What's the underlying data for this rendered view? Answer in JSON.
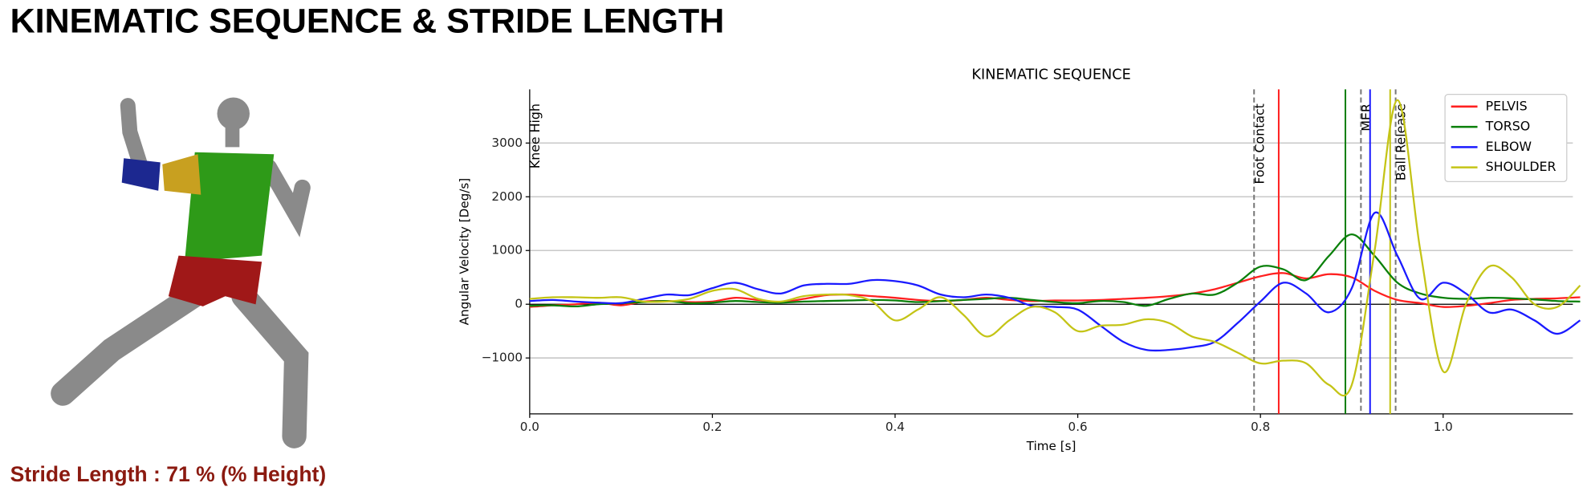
{
  "header": {
    "title": "KINEMATIC SEQUENCE & STRIDE LENGTH"
  },
  "figure": {
    "stride_label": "Stride Length : 71 % (% Height)"
  },
  "chart_data": {
    "type": "line",
    "title": "KINEMATIC SEQUENCE",
    "x_label": "Time [s]",
    "y_label": "Angular Velocity [Deg/s]",
    "x": [
      0,
      0.025,
      0.05,
      0.075,
      0.1,
      0.125,
      0.15,
      0.175,
      0.2,
      0.225,
      0.25,
      0.275,
      0.3,
      0.325,
      0.35,
      0.375,
      0.4,
      0.425,
      0.45,
      0.475,
      0.5,
      0.525,
      0.55,
      0.575,
      0.6,
      0.625,
      0.65,
      0.675,
      0.7,
      0.725,
      0.75,
      0.775,
      0.8,
      0.825,
      0.85,
      0.875,
      0.9,
      0.925,
      0.95,
      0.975,
      1.0,
      1.025,
      1.05,
      1.075,
      1.1,
      1.125,
      1.15
    ],
    "series": [
      {
        "name": "PELVIS",
        "color": "#ff2020",
        "peak_time": 0.82,
        "values": [
          -50,
          -20,
          0,
          30,
          -20,
          50,
          60,
          40,
          50,
          120,
          80,
          40,
          100,
          170,
          180,
          150,
          120,
          80,
          60,
          80,
          120,
          80,
          60,
          70,
          70,
          80,
          100,
          120,
          150,
          200,
          280,
          400,
          520,
          580,
          480,
          560,
          500,
          250,
          80,
          20,
          -50,
          -30,
          20,
          80,
          100,
          110,
          130
        ]
      },
      {
        "name": "TORSO",
        "color": "#0a800a",
        "peak_time": 0.893,
        "values": [
          -30,
          -20,
          -40,
          0,
          20,
          40,
          60,
          20,
          30,
          60,
          40,
          30,
          50,
          60,
          70,
          80,
          70,
          40,
          60,
          80,
          100,
          120,
          80,
          40,
          20,
          60,
          40,
          -30,
          100,
          200,
          180,
          400,
          700,
          650,
          450,
          900,
          1300,
          900,
          400,
          200,
          120,
          100,
          120,
          110,
          90,
          60,
          50
        ]
      },
      {
        "name": "ELBOW",
        "color": "#1a1aff",
        "peak_time": 0.92,
        "values": [
          60,
          80,
          50,
          30,
          20,
          100,
          180,
          170,
          300,
          400,
          280,
          200,
          350,
          380,
          380,
          450,
          430,
          350,
          180,
          130,
          180,
          120,
          -30,
          -50,
          -100,
          -400,
          -700,
          -850,
          -850,
          -800,
          -700,
          -350,
          50,
          400,
          200,
          -150,
          300,
          1700,
          900,
          100,
          400,
          200,
          -150,
          -100,
          -300,
          -550,
          -300
        ]
      },
      {
        "name": "SHOULDER",
        "color": "#c4c416",
        "peak_time": 0.942,
        "values": [
          100,
          130,
          130,
          120,
          130,
          50,
          50,
          100,
          250,
          280,
          100,
          50,
          150,
          180,
          170,
          50,
          -300,
          -100,
          130,
          -200,
          -600,
          -300,
          -50,
          -150,
          -500,
          -400,
          -380,
          -280,
          -350,
          -600,
          -700,
          -900,
          -1100,
          -1050,
          -1100,
          -1500,
          -1500,
          1000,
          3800,
          1000,
          -1250,
          0,
          700,
          500,
          0,
          -50,
          350
        ]
      }
    ],
    "events": [
      {
        "label": "Knee High",
        "x": 0
      },
      {
        "label": "Foot Contact",
        "x": 0.793
      },
      {
        "label": "MER",
        "x": 0.91
      },
      {
        "label": "Ball Release",
        "x": 0.948
      }
    ],
    "xlim": [
      0,
      1.142
    ],
    "ylim": [
      -2040,
      4000
    ],
    "xticks": [
      {
        "value": 0,
        "label": "0.0"
      },
      {
        "value": 0.2,
        "label": "0.2"
      },
      {
        "value": 0.4,
        "label": "0.4"
      },
      {
        "value": 0.6,
        "label": "0.6"
      },
      {
        "value": 0.8,
        "label": "0.8"
      },
      {
        "value": 1,
        "label": "1.0"
      }
    ],
    "yticks": [
      {
        "value": -1000,
        "label": "−1000"
      },
      0,
      1000,
      2000,
      3000
    ],
    "grid": "y",
    "legend": "upper right"
  }
}
